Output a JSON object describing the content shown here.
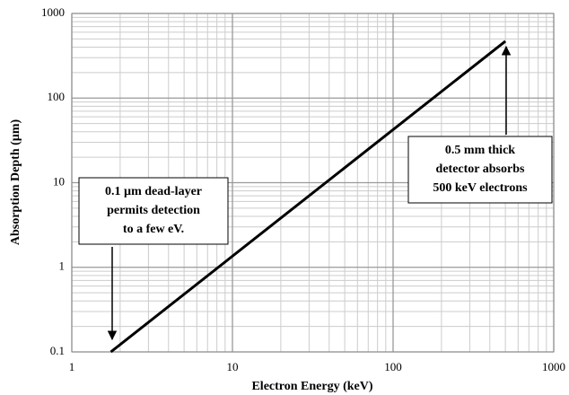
{
  "chart_data": {
    "type": "line",
    "x_label": "Electron Energy (keV)",
    "y_label": "Absorption Depth (µm)",
    "x": [
      1.75,
      500
    ],
    "series": [
      {
        "name": "Absorption depth",
        "color": "#000000",
        "values": [
          0.1,
          470
        ]
      }
    ],
    "xlim": [
      1,
      1000
    ],
    "xticks": [
      1,
      10,
      100,
      1000
    ],
    "ylim": [
      0.1,
      1000
    ],
    "yticks": [
      0.1,
      1,
      10,
      100,
      1000
    ],
    "log_x": true,
    "log_y": true,
    "grid": true,
    "minor_grid": true,
    "annotations": [
      {
        "lines": [
          "0.1 µm dead-layer",
          "permits detection",
          "to a few eV."
        ]
      },
      {
        "lines": [
          "0.5 mm thick",
          "detector absorbs",
          "500 keV electrons"
        ]
      }
    ]
  }
}
